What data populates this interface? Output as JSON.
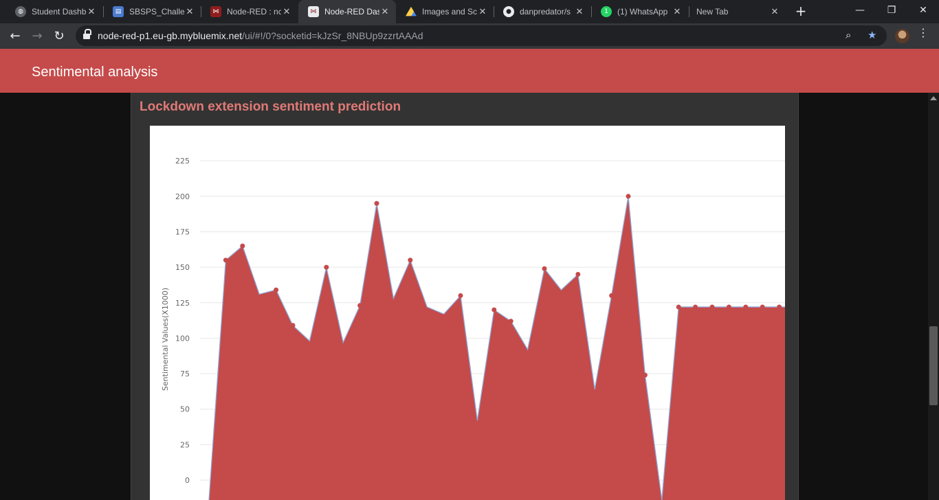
{
  "browser": {
    "tabs": [
      {
        "title": "Student Dashb",
        "favicon": "globe-icon",
        "active": false
      },
      {
        "title": "SBSPS_Challen",
        "favicon": "document-icon",
        "active": false
      },
      {
        "title": "Node-RED : nc",
        "favicon": "node-red-icon",
        "active": false
      },
      {
        "title": "Node-RED Das",
        "favicon": "node-red-icon",
        "active": true
      },
      {
        "title": "Images and Sc",
        "favicon": "google-drive-icon",
        "active": false
      },
      {
        "title": "danpredator/s",
        "favicon": "github-icon",
        "active": false
      },
      {
        "title": "(1) WhatsApp",
        "favicon": "whatsapp-icon",
        "active": false
      },
      {
        "title": "New Tab",
        "favicon": "",
        "active": false
      }
    ],
    "url_host": "node-red-p1.eu-gb.mybluemix.net",
    "url_path": "/ui/#!/0?socketid=kJzSr_8NBUp9zzrtAAAd"
  },
  "dashboard": {
    "title": "Sentimental analysis",
    "accent": "#c54a4a"
  },
  "card": {
    "title": "Lockdown extension sentiment prediction"
  },
  "chart_data": {
    "type": "area",
    "ylabel": "Sentimental Values(X1000)",
    "yticks": [
      0,
      25,
      50,
      75,
      100,
      125,
      150,
      175,
      200,
      225
    ],
    "ylim": [
      -14,
      250
    ],
    "fill_color": "#c54a4a",
    "line_color": "#8fa9d6",
    "point_color": "#c54a4a",
    "values": [
      -14,
      155,
      165,
      131,
      134,
      109,
      98,
      150,
      97,
      123,
      195,
      128,
      155,
      122,
      117,
      130,
      42,
      120,
      112,
      92,
      149,
      134,
      145,
      64,
      130,
      200,
      74,
      -14,
      122,
      122,
      122,
      122,
      122,
      122,
      122,
      122
    ],
    "markers": [
      false,
      true,
      true,
      false,
      true,
      true,
      false,
      true,
      false,
      true,
      true,
      false,
      true,
      false,
      false,
      true,
      false,
      true,
      true,
      false,
      true,
      false,
      true,
      false,
      true,
      true,
      true,
      false,
      true,
      true,
      true,
      true,
      true,
      true,
      true,
      false
    ]
  }
}
